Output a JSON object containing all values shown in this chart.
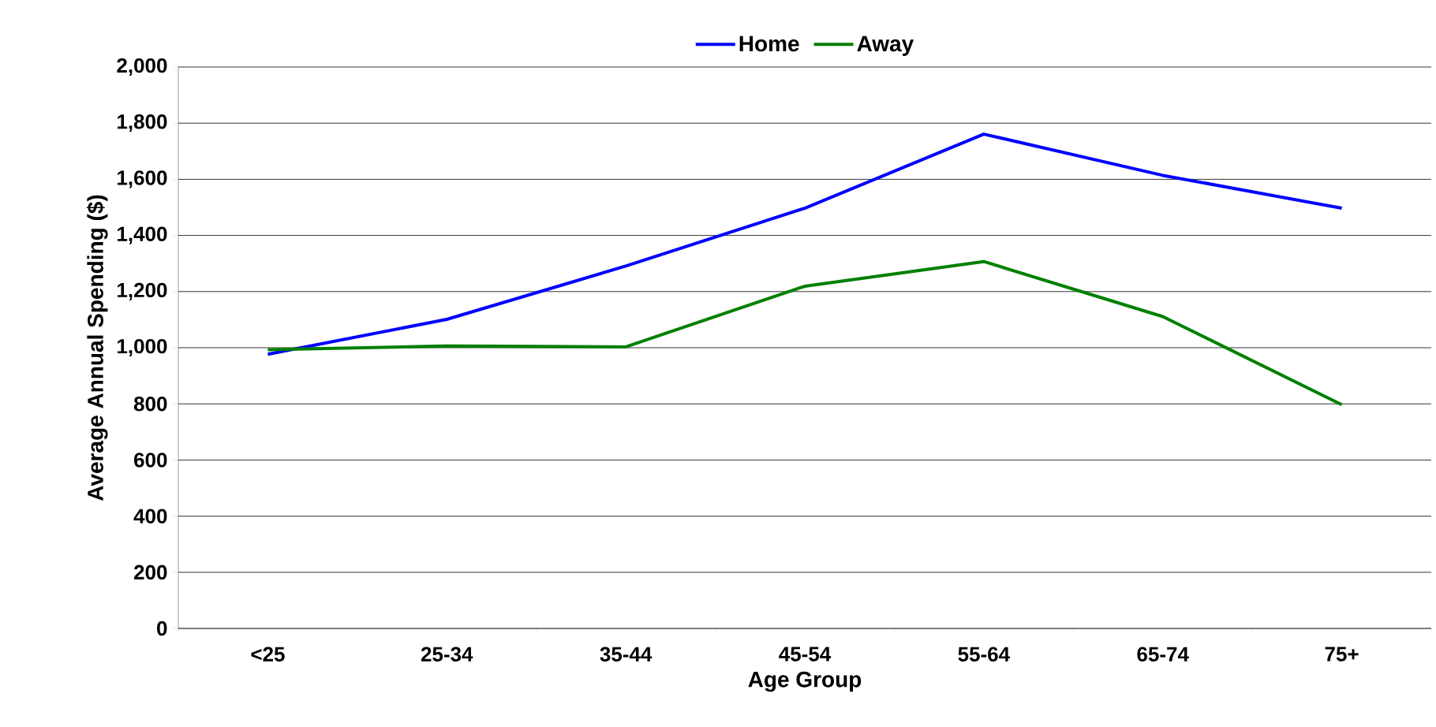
{
  "chart_data": {
    "type": "line",
    "xlabel": "Age Group",
    "ylabel": "Average Annual Spending ($)",
    "categories": [
      "<25",
      "25-34",
      "35-44",
      "45-54",
      "55-64",
      "65-74",
      "75+"
    ],
    "series": [
      {
        "name": "Home",
        "color": "#0000ff",
        "values": [
          977,
          1101,
          1291,
          1497,
          1761,
          1614,
          1497
        ]
      },
      {
        "name": "Away",
        "color": "#008000",
        "values": [
          993,
          1006,
          1003,
          1219,
          1307,
          1111,
          797
        ]
      }
    ],
    "ylim": [
      0,
      2000
    ],
    "yticks": [
      {
        "value": 0,
        "label": "0"
      },
      {
        "value": 200,
        "label": "200"
      },
      {
        "value": 400,
        "label": "400"
      },
      {
        "value": 600,
        "label": "600"
      },
      {
        "value": 800,
        "label": "800"
      },
      {
        "value": 1000,
        "label": "1,000"
      },
      {
        "value": 1200,
        "label": "1,200"
      },
      {
        "value": 1400,
        "label": "1,400"
      },
      {
        "value": 1600,
        "label": "1,600"
      },
      {
        "value": 1800,
        "label": "1,800"
      },
      {
        "value": 2000,
        "label": "2,000"
      }
    ],
    "grid": "y",
    "legend": "top",
    "marker": "none",
    "line_style": "solid"
  }
}
